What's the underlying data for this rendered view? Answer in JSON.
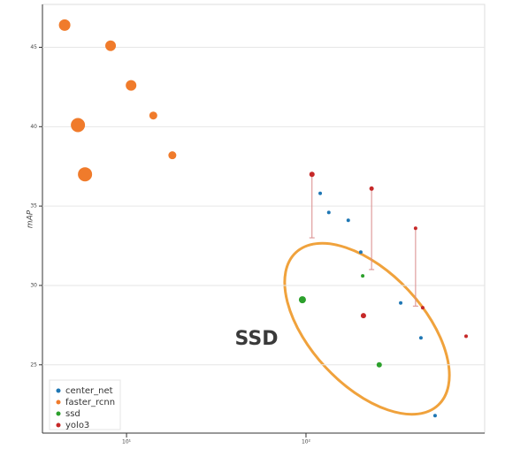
{
  "chart_data": {
    "type": "scatter",
    "y_label": "mAP",
    "annotation": "SSD",
    "xscale": "log",
    "grid": "y",
    "legend": "bottom-left",
    "xlim": [
      3.4,
      990
    ],
    "ylim": [
      20.7,
      47.7
    ],
    "xticks": [
      {
        "value": 10,
        "label": "10¹"
      },
      {
        "value": 100,
        "label": "10²"
      }
    ],
    "yticks": [
      25,
      30,
      35,
      40,
      45
    ],
    "series": [
      {
        "name": "center_net",
        "color": "#1f77b4",
        "x": [
          120,
          134,
          172,
          202,
          337,
          437,
          524
        ],
        "values": [
          35.8,
          34.6,
          34.1,
          32.1,
          28.9,
          26.7,
          21.8
        ],
        "sizes": [
          3,
          3,
          3,
          3,
          3,
          3,
          3
        ]
      },
      {
        "name": "faster_rcnn",
        "color": "#f07b2b",
        "x": [
          4.52,
          8.15,
          10.6,
          14.1,
          18.0,
          5.36,
          5.87
        ],
        "values": [
          46.4,
          45.1,
          42.6,
          40.7,
          38.2,
          40.1,
          37.0
        ],
        "sizes": [
          12,
          11,
          11,
          8,
          8,
          15,
          15
        ]
      },
      {
        "name": "ssd",
        "color": "#2ca02c",
        "x": [
          95.5,
          207,
          256
        ],
        "values": [
          29.1,
          30.6,
          25.0
        ],
        "sizes": [
          7,
          3,
          5
        ]
      },
      {
        "name": "yolo3",
        "color": "#c62828",
        "x": [
          108,
          232,
          408,
          209,
          447,
          780
        ],
        "values": [
          37.0,
          36.1,
          33.6,
          28.1,
          28.6,
          26.8
        ],
        "errors": [
          4.0,
          5.1,
          4.9,
          null,
          null,
          null
        ],
        "sizes": [
          5,
          4,
          3,
          5,
          3,
          3
        ]
      }
    ]
  }
}
